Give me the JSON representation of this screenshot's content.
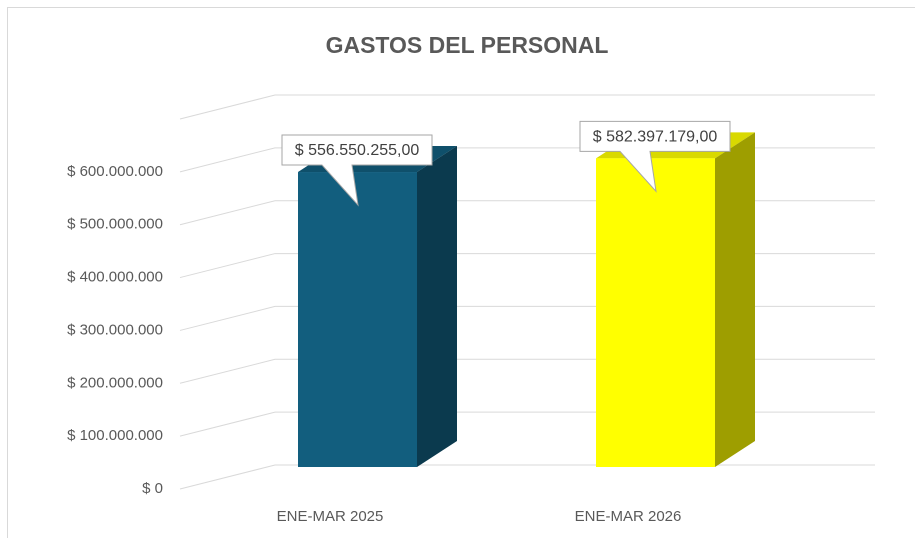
{
  "chart_data": {
    "type": "bar3d",
    "title": "GASTOS DEL PERSONAL",
    "categories": [
      "ENE-MAR 2025",
      "ENE-MAR 2026"
    ],
    "values": [
      556550255,
      582397179
    ],
    "value_labels": [
      "$ 556.550.255,00",
      "$ 582.397.179,00"
    ],
    "colors": [
      "#125e7e",
      "#ffff00"
    ],
    "ylim": [
      0,
      700000000
    ],
    "yticks": [
      {
        "value": 0,
        "label": "$ 0"
      },
      {
        "value": 100000000,
        "label": "$ 100.000.000"
      },
      {
        "value": 200000000,
        "label": "$ 200.000.000"
      },
      {
        "value": 300000000,
        "label": "$ 300.000.000"
      },
      {
        "value": 400000000,
        "label": "$ 400.000.000"
      },
      {
        "value": 500000000,
        "label": "$ 500.000.000"
      },
      {
        "value": 600000000,
        "label": "$ 600.000.000"
      }
    ],
    "grid": true
  }
}
